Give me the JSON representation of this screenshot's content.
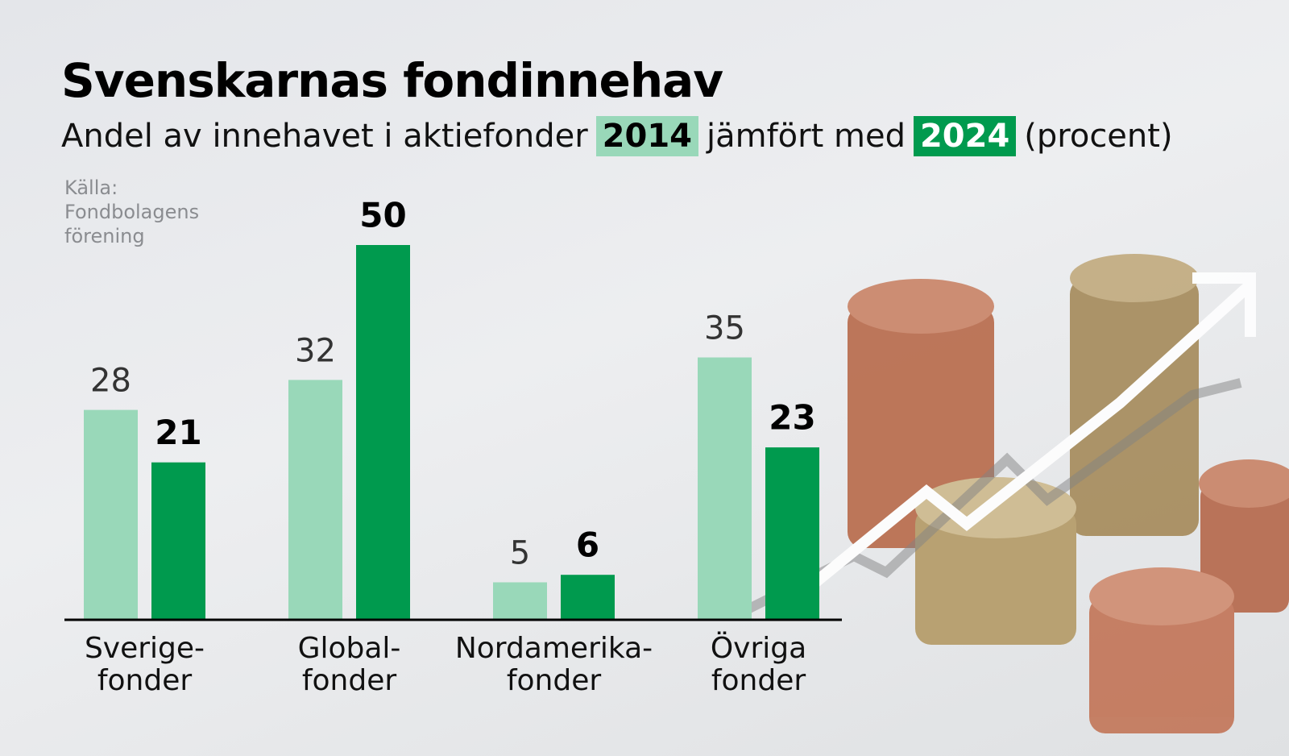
{
  "chart_data": {
    "type": "bar",
    "title": "Svenskarnas fondinnehav",
    "subtitle_parts": [
      "Andel av innehavet i aktiefonder",
      "jämfört med",
      "(procent)"
    ],
    "source": [
      "Källa:",
      "Fondbolagens",
      "förening"
    ],
    "categories": [
      [
        "Sverige-",
        "fonder"
      ],
      [
        "Global-",
        "fonder"
      ],
      [
        "Nordamerika-",
        "fonder"
      ],
      [
        "Övriga",
        "fonder"
      ]
    ],
    "series": [
      {
        "name": "2014",
        "color": "#99d8b9",
        "values": [
          28,
          32,
          5,
          35
        ]
      },
      {
        "name": "2024",
        "color": "#009a4e",
        "values": [
          21,
          50,
          6,
          23
        ]
      }
    ]
  }
}
